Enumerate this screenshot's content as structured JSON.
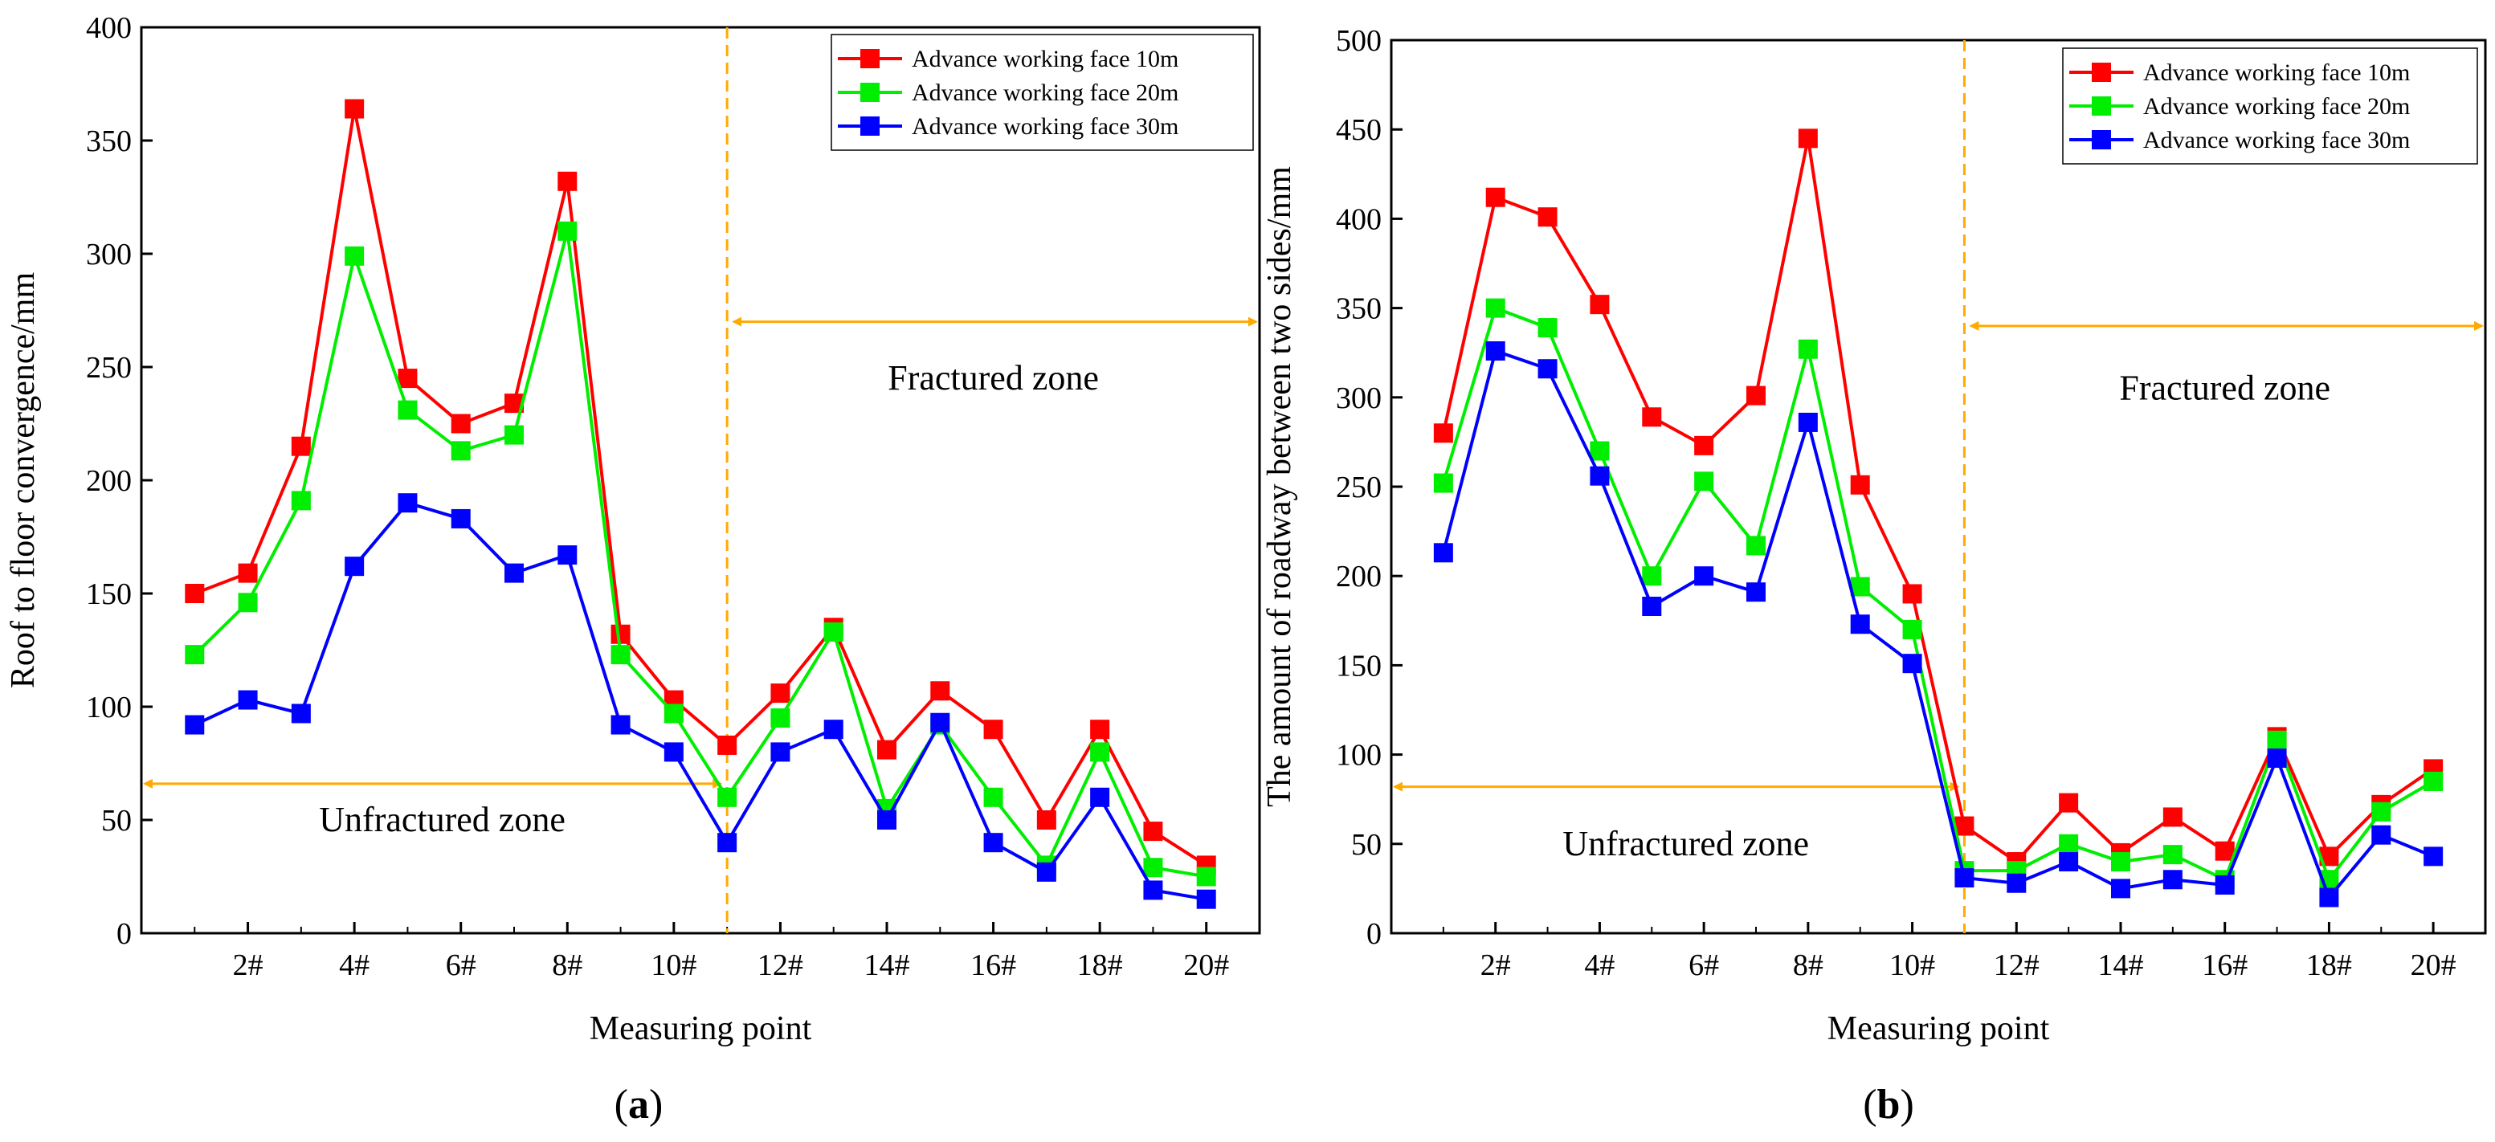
{
  "chart_data": [
    {
      "type": "line",
      "panel_label": "a",
      "xlabel": "Measuring point",
      "ylabel": "Roof to floor convergence/mm",
      "ylim": [
        0,
        400
      ],
      "yticks": [
        0,
        50,
        100,
        150,
        200,
        250,
        300,
        350,
        400
      ],
      "xlim": [
        0,
        21
      ],
      "x": [
        1,
        2,
        3,
        4,
        5,
        6,
        7,
        8,
        9,
        10,
        11,
        12,
        13,
        14,
        15,
        16,
        17,
        18,
        19,
        20
      ],
      "xtick_positions": [
        2,
        4,
        6,
        8,
        10,
        12,
        14,
        16,
        18,
        20
      ],
      "xtick_labels": [
        "2#",
        "4#",
        "6#",
        "8#",
        "10#",
        "12#",
        "14#",
        "16#",
        "18#",
        "20#"
      ],
      "divider_x": 11,
      "zones": {
        "left": "Unfractured zone",
        "right": "Fractured zone"
      },
      "zone_levels": {
        "left_arrow": 66,
        "left_text": 50,
        "right_arrow": 270,
        "right_text": 245
      },
      "legend_position": "top-right",
      "series": [
        {
          "name": "Advance working face 10m",
          "color": "#ff0000",
          "values": [
            150,
            159,
            215,
            364,
            245,
            225,
            234,
            332,
            132,
            103,
            83,
            106,
            135,
            81,
            107,
            90,
            50,
            90,
            45,
            30
          ]
        },
        {
          "name": "Advance working face 20m",
          "color": "#00ee00",
          "values": [
            123,
            146,
            191,
            299,
            231,
            213,
            220,
            310,
            123,
            97,
            60,
            95,
            133,
            55,
            92,
            60,
            30,
            80,
            29,
            25
          ]
        },
        {
          "name": "Advance working face 30m",
          "color": "#0000ff",
          "values": [
            92,
            103,
            97,
            162,
            190,
            183,
            159,
            167,
            92,
            80,
            40,
            80,
            90,
            50,
            93,
            40,
            27,
            60,
            19,
            15
          ]
        }
      ]
    },
    {
      "type": "line",
      "panel_label": "b",
      "xlabel": "Measuring point",
      "ylabel": "The amount of roadway between two sides/mm",
      "ylim": [
        0,
        500
      ],
      "yticks": [
        0,
        50,
        100,
        150,
        200,
        250,
        300,
        350,
        400,
        450,
        500
      ],
      "xlim": [
        0,
        21
      ],
      "x": [
        1,
        2,
        3,
        4,
        5,
        6,
        7,
        8,
        9,
        10,
        11,
        12,
        13,
        14,
        15,
        16,
        17,
        18,
        19,
        20
      ],
      "xtick_positions": [
        2,
        4,
        6,
        8,
        10,
        12,
        14,
        16,
        18,
        20
      ],
      "xtick_labels": [
        "2#",
        "4#",
        "6#",
        "8#",
        "10#",
        "12#",
        "14#",
        "16#",
        "18#",
        "20#"
      ],
      "divider_x": 11,
      "zones": {
        "left": "Unfractured zone",
        "right": "Fractured zone"
      },
      "zone_levels": {
        "left_arrow": 82,
        "left_text": 50,
        "right_arrow": 340,
        "right_text": 305
      },
      "legend_position": "top-right",
      "series": [
        {
          "name": "Advance working face 10m",
          "color": "#ff0000",
          "values": [
            280,
            412,
            401,
            352,
            289,
            273,
            301,
            445,
            251,
            190,
            60,
            40,
            73,
            45,
            65,
            46,
            110,
            43,
            72,
            92
          ]
        },
        {
          "name": "Advance working face 20m",
          "color": "#00ee00",
          "values": [
            252,
            350,
            339,
            270,
            200,
            253,
            217,
            327,
            194,
            170,
            35,
            35,
            50,
            40,
            44,
            30,
            108,
            30,
            68,
            85
          ]
        },
        {
          "name": "Advance working face 30m",
          "color": "#0000ff",
          "values": [
            213,
            326,
            316,
            256,
            183,
            200,
            191,
            286,
            173,
            151,
            31,
            28,
            40,
            25,
            30,
            27,
            98,
            20,
            55,
            43
          ]
        }
      ]
    }
  ]
}
